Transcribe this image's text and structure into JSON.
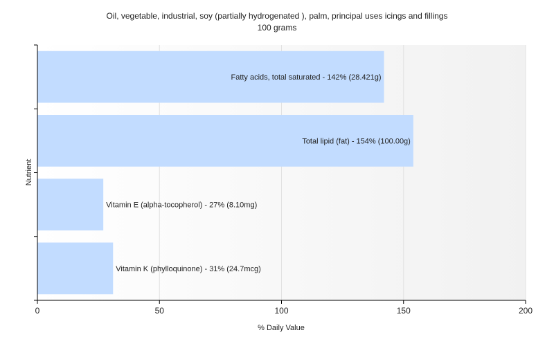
{
  "chart_data": {
    "type": "bar",
    "orientation": "horizontal",
    "title": "Oil, vegetable, industrial, soy (partially hydrogenated ), palm, principal uses icings and fillings",
    "subtitle": "100 grams",
    "xlabel": "% Daily Value",
    "ylabel": "Nutrient",
    "xlim": [
      0,
      200
    ],
    "xticks": [
      0,
      50,
      100,
      150,
      200
    ],
    "grid": "vertical",
    "bar_color": "#c2dcff",
    "bars": [
      {
        "label": "Fatty acids, total saturated - 142% (28.421g)",
        "value": 142
      },
      {
        "label": "Total lipid (fat) - 154% (100.00g)",
        "value": 154
      },
      {
        "label": "Vitamin E (alpha-tocopherol) - 27% (8.10mg)",
        "value": 27
      },
      {
        "label": "Vitamin K (phylloquinone) - 31% (24.7mcg)",
        "value": 31
      }
    ]
  }
}
